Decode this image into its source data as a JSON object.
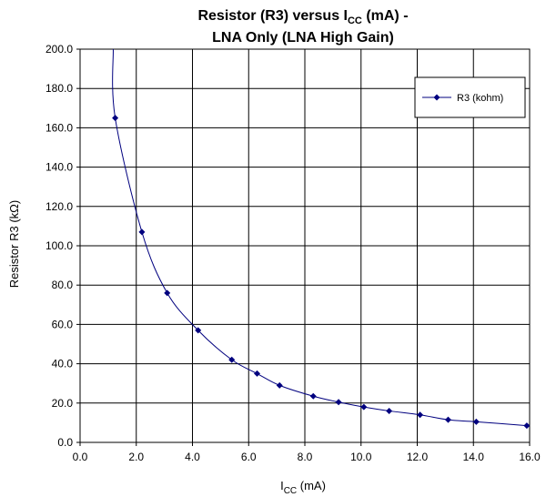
{
  "chart_data": {
    "type": "line",
    "title_line1_main": "Resistor (R3) versus I",
    "title_line1_sub": "CC",
    "title_line1_tail": " (mA) -",
    "title_line2": "LNA Only (LNA High Gain)",
    "xlabel_main": "I",
    "xlabel_sub": "CC",
    "xlabel_tail": " (mA)",
    "ylabel": "Resistor R3 (kΩ)",
    "xlim": [
      0,
      16
    ],
    "ylim": [
      0,
      200
    ],
    "x_ticks": [
      "0.0",
      "2.0",
      "4.0",
      "6.0",
      "8.0",
      "10.0",
      "12.0",
      "14.0",
      "16.0"
    ],
    "y_ticks": [
      "0.0",
      "20.0",
      "40.0",
      "60.0",
      "80.0",
      "100.0",
      "120.0",
      "140.0",
      "160.0",
      "180.0",
      "200.0"
    ],
    "grid": true,
    "legend_position": "top-right",
    "series": [
      {
        "name": "R3 (kohm)",
        "color": "#00007f",
        "marker": "diamond",
        "points": [
          [
            1.25,
            165
          ],
          [
            2.2,
            107
          ],
          [
            3.1,
            76
          ],
          [
            4.2,
            57
          ],
          [
            5.4,
            42
          ],
          [
            6.3,
            35
          ],
          [
            7.1,
            29
          ],
          [
            8.3,
            23.5
          ],
          [
            9.2,
            20.5
          ],
          [
            10.1,
            18
          ],
          [
            11.0,
            16
          ],
          [
            12.1,
            14
          ],
          [
            13.1,
            11.5
          ],
          [
            14.1,
            10.5
          ],
          [
            15.9,
            8.5
          ]
        ],
        "curve_extension": [
          [
            1.18,
            200
          ]
        ]
      }
    ]
  }
}
